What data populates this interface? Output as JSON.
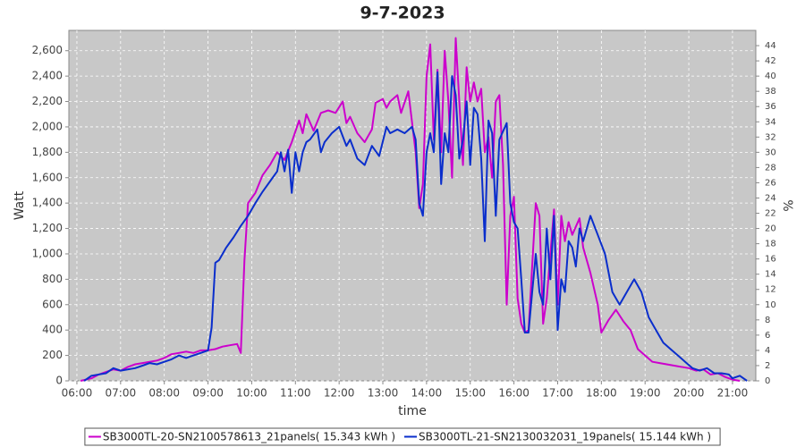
{
  "chart_data": {
    "type": "line",
    "title": "9-7-2023",
    "x_label": "time",
    "y_label": "Watt",
    "y2_label": "%",
    "xlim": [
      "05:49",
      "21:32"
    ],
    "xticks": [
      "06:00",
      "07:00",
      "08:00",
      "09:00",
      "10:00",
      "11:00",
      "12:00",
      "13:00",
      "14:00",
      "15:00",
      "16:00",
      "17:00",
      "18:00",
      "19:00",
      "20:00",
      "21:00"
    ],
    "ylim": [
      0,
      2760
    ],
    "yticks": [
      0,
      200,
      400,
      600,
      800,
      {
        "value": 1000,
        "label": "1,000"
      },
      {
        "value": 1200,
        "label": "1,200"
      },
      {
        "value": 1400,
        "label": "1,400"
      },
      {
        "value": 1600,
        "label": "1,600"
      },
      {
        "value": 1800,
        "label": "1,800"
      },
      {
        "value": 2000,
        "label": "2,000"
      },
      {
        "value": 2200,
        "label": "2,200"
      },
      {
        "value": 2400,
        "label": "2,400"
      },
      {
        "value": 2600,
        "label": "2,600"
      }
    ],
    "y2lim": [
      0,
      46
    ],
    "y2ticks": [
      0,
      2,
      4,
      6,
      8,
      10,
      12,
      14,
      16,
      18,
      20,
      22,
      24,
      26,
      28,
      30,
      32,
      34,
      36,
      38,
      40,
      42,
      44
    ],
    "grid": true,
    "legend": "bottom",
    "series": [
      {
        "name": "SB3000TL-20-SN2100578613_21panels( 15.343 kWh )",
        "color": "#cc00cc",
        "x": [
          "06:05",
          "06:20",
          "06:30",
          "06:40",
          "06:50",
          "07:00",
          "07:10",
          "07:20",
          "07:30",
          "07:40",
          "07:50",
          "08:00",
          "08:10",
          "08:20",
          "08:30",
          "08:40",
          "08:50",
          "09:00",
          "09:10",
          "09:20",
          "09:30",
          "09:40",
          "09:45",
          "09:50",
          "09:55",
          "10:05",
          "10:15",
          "10:25",
          "10:35",
          "10:45",
          "10:55",
          "11:05",
          "11:10",
          "11:15",
          "11:25",
          "11:35",
          "11:45",
          "11:55",
          "12:05",
          "12:10",
          "12:15",
          "12:25",
          "12:35",
          "12:45",
          "12:50",
          "13:00",
          "13:05",
          "13:10",
          "13:20",
          "13:25",
          "13:35",
          "13:45",
          "13:50",
          "13:55",
          "14:00",
          "14:05",
          "14:10",
          "14:15",
          "14:20",
          "14:25",
          "14:30",
          "14:35",
          "14:40",
          "14:45",
          "14:50",
          "14:55",
          "15:00",
          "15:05",
          "15:10",
          "15:15",
          "15:20",
          "15:25",
          "15:30",
          "15:35",
          "15:40",
          "15:45",
          "15:50",
          "15:55",
          "16:00",
          "16:05",
          "16:10",
          "16:15",
          "16:20",
          "16:30",
          "16:35",
          "16:40",
          "16:45",
          "16:55",
          "17:00",
          "17:05",
          "17:10",
          "17:15",
          "17:20",
          "17:30",
          "17:35",
          "17:45",
          "17:55",
          "18:00",
          "18:10",
          "18:20",
          "18:30",
          "18:40",
          "18:50",
          "19:00",
          "19:10",
          "19:20",
          "19:40",
          "20:00",
          "20:10",
          "20:20",
          "20:30",
          "20:40",
          "20:50",
          "21:00",
          "21:10"
        ],
        "values": [
          0,
          20,
          50,
          70,
          90,
          80,
          110,
          130,
          140,
          150,
          160,
          180,
          210,
          220,
          230,
          220,
          240,
          240,
          250,
          270,
          280,
          290,
          220,
          950,
          1400,
          1480,
          1620,
          1700,
          1800,
          1740,
          1880,
          2050,
          1950,
          2100,
          1970,
          2110,
          2130,
          2110,
          2200,
          2030,
          2080,
          1950,
          1880,
          1980,
          2190,
          2220,
          2150,
          2200,
          2250,
          2110,
          2280,
          1800,
          1360,
          1550,
          2400,
          2650,
          1900,
          2450,
          1800,
          2600,
          2200,
          1600,
          2700,
          2200,
          1700,
          2470,
          2200,
          2350,
          2200,
          2300,
          1800,
          1920,
          1600,
          2200,
          2250,
          1700,
          600,
          1300,
          1450,
          650,
          450,
          380,
          400,
          1400,
          1300,
          450,
          650,
          1350,
          600,
          1300,
          1100,
          1250,
          1150,
          1280,
          1050,
          850,
          600,
          380,
          480,
          560,
          470,
          400,
          250,
          200,
          150,
          140,
          120,
          100,
          80,
          90,
          50,
          60,
          30,
          10,
          0
        ]
      },
      {
        "name": "SB3000TL-21-SN2130032031_19panels( 15.144 kWh )",
        "color": "#0a2ecc",
        "x": [
          "06:10",
          "06:20",
          "06:40",
          "06:50",
          "07:00",
          "07:20",
          "07:30",
          "07:40",
          "07:50",
          "08:00",
          "08:10",
          "08:20",
          "08:30",
          "08:40",
          "08:50",
          "09:00",
          "09:05",
          "09:10",
          "09:15",
          "09:25",
          "09:35",
          "09:45",
          "09:55",
          "10:05",
          "10:15",
          "10:25",
          "10:35",
          "10:40",
          "10:45",
          "10:50",
          "10:55",
          "11:00",
          "11:05",
          "11:10",
          "11:15",
          "11:20",
          "11:30",
          "11:35",
          "11:40",
          "11:50",
          "12:00",
          "12:10",
          "12:15",
          "12:25",
          "12:35",
          "12:45",
          "12:55",
          "13:05",
          "13:10",
          "13:20",
          "13:30",
          "13:40",
          "13:45",
          "13:50",
          "13:55",
          "14:00",
          "14:05",
          "14:10",
          "14:15",
          "14:20",
          "14:25",
          "14:30",
          "14:35",
          "14:40",
          "14:45",
          "14:50",
          "14:55",
          "15:00",
          "15:05",
          "15:10",
          "15:15",
          "15:20",
          "15:25",
          "15:30",
          "15:35",
          "15:40",
          "15:50",
          "15:55",
          "16:00",
          "16:05",
          "16:10",
          "16:15",
          "16:20",
          "16:25",
          "16:30",
          "16:35",
          "16:40",
          "16:45",
          "16:50",
          "16:55",
          "17:00",
          "17:05",
          "17:10",
          "17:15",
          "17:20",
          "17:25",
          "17:30",
          "17:35",
          "17:45",
          "17:55",
          "18:05",
          "18:15",
          "18:25",
          "18:35",
          "18:45",
          "18:55",
          "19:05",
          "19:15",
          "19:25",
          "19:35",
          "19:45",
          "19:55",
          "20:05",
          "20:15",
          "20:25",
          "20:35",
          "20:45",
          "20:55",
          "21:00",
          "21:10",
          "21:20"
        ],
        "values": [
          0,
          40,
          60,
          100,
          80,
          100,
          120,
          140,
          130,
          150,
          170,
          200,
          180,
          200,
          220,
          240,
          420,
          930,
          950,
          1050,
          1130,
          1220,
          1300,
          1400,
          1490,
          1570,
          1650,
          1800,
          1650,
          1820,
          1480,
          1800,
          1650,
          1800,
          1880,
          1900,
          1980,
          1800,
          1880,
          1950,
          2000,
          1850,
          1900,
          1750,
          1700,
          1850,
          1770,
          2000,
          1950,
          1980,
          1950,
          2000,
          1900,
          1400,
          1300,
          1800,
          1950,
          1800,
          2430,
          1550,
          1950,
          1800,
          2400,
          2250,
          1750,
          1900,
          2200,
          1700,
          2150,
          2100,
          1750,
          1100,
          2050,
          1950,
          1300,
          1900,
          2030,
          1400,
          1250,
          1200,
          800,
          380,
          380,
          700,
          1000,
          700,
          600,
          1200,
          800,
          1300,
          400,
          800,
          700,
          1100,
          1050,
          900,
          1200,
          1100,
          1300,
          1150,
          1000,
          700,
          600,
          700,
          800,
          700,
          500,
          400,
          300,
          250,
          200,
          150,
          100,
          80,
          100,
          60,
          60,
          50,
          20,
          40,
          0
        ]
      }
    ]
  }
}
